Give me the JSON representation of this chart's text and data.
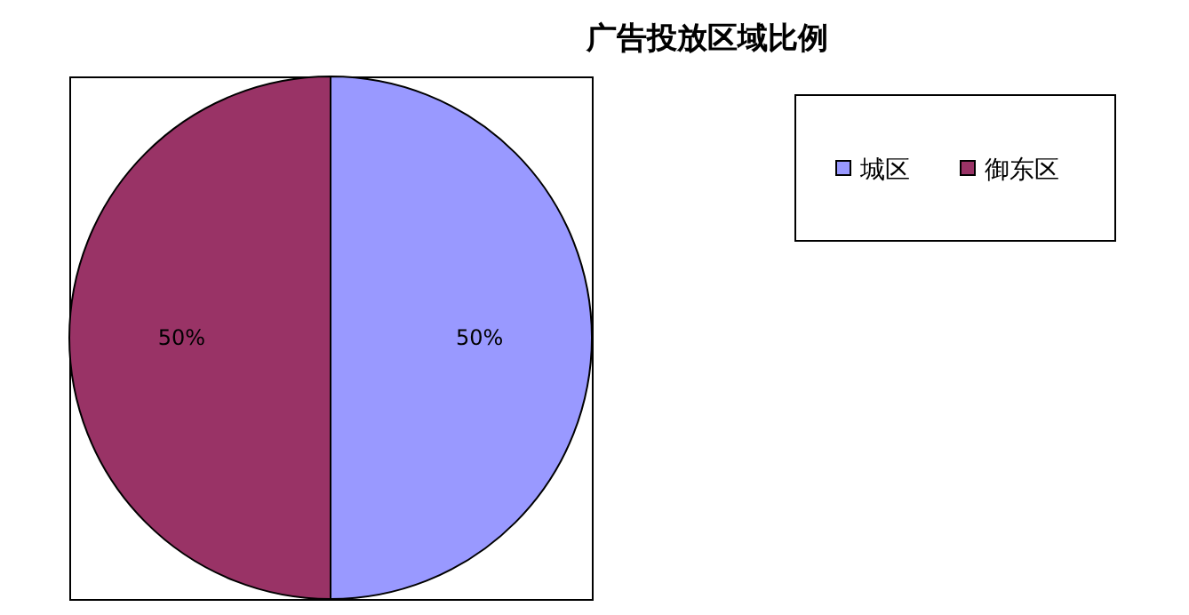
{
  "chart_data": {
    "type": "pie",
    "title": "广告投放区域比例",
    "categories": [
      "城区",
      "御东区"
    ],
    "values": [
      50,
      50
    ],
    "colors": [
      "#9999ff",
      "#993366"
    ],
    "value_labels": [
      "50%",
      "50%"
    ],
    "legend": "top right"
  }
}
